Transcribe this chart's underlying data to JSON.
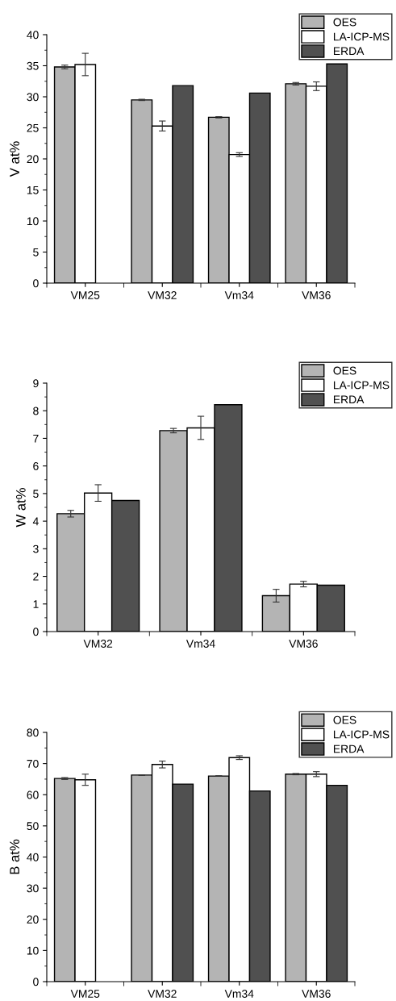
{
  "chart_data": [
    {
      "type": "bar",
      "ylabel": "V at%",
      "categories": [
        "VM25",
        "VM32",
        "Vm34",
        "VM36"
      ],
      "ylim": [
        0,
        40
      ],
      "yticks": [
        0,
        5,
        10,
        15,
        20,
        25,
        30,
        35,
        40
      ],
      "legend": "top right",
      "grid": false,
      "series": [
        {
          "name": "OES",
          "color": "#b4b4b4",
          "values": [
            34.8,
            29.5,
            26.7,
            32.1
          ],
          "errors": [
            0.3,
            0.1,
            0.1,
            0.2
          ]
        },
        {
          "name": "LA-ICP-MS",
          "color": "#ffffff",
          "values": [
            35.2,
            25.3,
            20.7,
            31.7
          ],
          "errors": [
            1.8,
            0.8,
            0.3,
            0.7
          ]
        },
        {
          "name": "ERDA",
          "color": "#505050",
          "values": [
            null,
            31.8,
            30.6,
            35.3
          ]
        }
      ]
    },
    {
      "type": "bar",
      "ylabel": "W at%",
      "categories": [
        "VM32",
        "Vm34",
        "VM36"
      ],
      "ylim": [
        0,
        9
      ],
      "yticks": [
        0,
        1,
        2,
        3,
        4,
        5,
        6,
        7,
        8,
        9
      ],
      "legend": "top right",
      "grid": false,
      "series": [
        {
          "name": "OES",
          "color": "#b4b4b4",
          "values": [
            4.27,
            7.28,
            1.3
          ],
          "errors": [
            0.12,
            0.08,
            0.23
          ]
        },
        {
          "name": "LA-ICP-MS",
          "color": "#ffffff",
          "values": [
            5.02,
            7.38,
            1.72
          ],
          "errors": [
            0.3,
            0.42,
            0.1
          ]
        },
        {
          "name": "ERDA",
          "color": "#505050",
          "values": [
            4.75,
            8.22,
            1.68
          ]
        }
      ]
    },
    {
      "type": "bar",
      "ylabel": "B at%",
      "categories": [
        "VM25",
        "VM32",
        "Vm34",
        "VM36"
      ],
      "ylim": [
        0,
        80
      ],
      "yticks": [
        0,
        10,
        20,
        30,
        40,
        50,
        60,
        70,
        80
      ],
      "legend": "top right",
      "grid": false,
      "series": [
        {
          "name": "OES",
          "color": "#b4b4b4",
          "values": [
            65.2,
            66.3,
            66.0,
            66.6
          ],
          "errors": [
            0.3,
            0.1,
            0.1,
            0.2
          ]
        },
        {
          "name": "LA-ICP-MS",
          "color": "#ffffff",
          "values": [
            64.8,
            69.7,
            71.9,
            66.6
          ],
          "errors": [
            1.8,
            1.1,
            0.6,
            0.8
          ]
        },
        {
          "name": "ERDA",
          "color": "#505050",
          "values": [
            null,
            63.4,
            61.2,
            63.0
          ]
        }
      ]
    }
  ]
}
